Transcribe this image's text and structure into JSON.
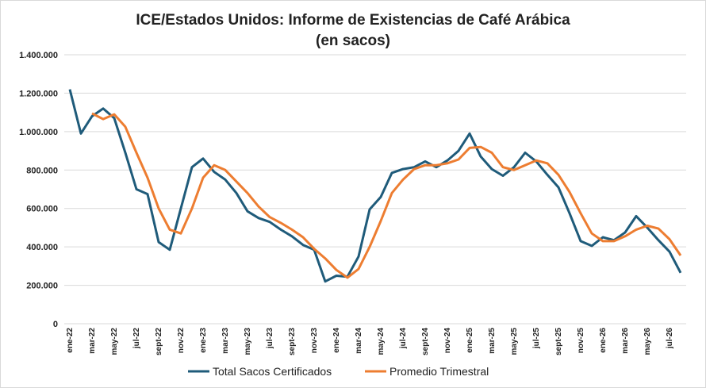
{
  "chart_data": {
    "type": "line",
    "title": "ICE/Estados Unidos: Informe de Existencias de Café Arábica",
    "subtitle": "(en sacos)",
    "xlabel": "",
    "ylabel": "",
    "ylim": [
      0,
      1400000
    ],
    "y_ticks": [
      0,
      200000,
      400000,
      600000,
      800000,
      1000000,
      1200000,
      1400000
    ],
    "y_tick_labels": [
      "0",
      "200.000",
      "400.000",
      "600.000",
      "800.000",
      "1.000.000",
      "1.200.000",
      "1.400.000"
    ],
    "grid": true,
    "legend_position": "bottom",
    "tick_labels": [
      "ene-22",
      "mar-22",
      "may-22",
      "jul-22",
      "sept-22",
      "nov-22",
      "ene-23",
      "mar-23",
      "may-23",
      "jul-23",
      "sept-23",
      "nov-23",
      "ene-24",
      "mar-24",
      "may-24",
      "jul-24",
      "sept-24",
      "nov-24",
      "ene-25",
      "mar-25",
      "may-25",
      "jul-25",
      "sept-25",
      "nov-25",
      "ene-26",
      "mar-26",
      "may-26",
      "jul-26"
    ],
    "series": [
      {
        "name": "Total Sacos Certificados",
        "color": "#1f5b7a",
        "values": [
          1220000,
          990000,
          1080000,
          1120000,
          1070000,
          890000,
          700000,
          675000,
          425000,
          385000,
          600000,
          815000,
          860000,
          790000,
          750000,
          680000,
          585000,
          550000,
          530000,
          490000,
          455000,
          410000,
          385000,
          220000,
          250000,
          245000,
          350000,
          595000,
          660000,
          785000,
          805000,
          815000,
          845000,
          815000,
          850000,
          900000,
          990000,
          870000,
          805000,
          770000,
          815000,
          890000,
          845000,
          775000,
          710000,
          575000,
          430000,
          405000,
          450000,
          435000,
          475000,
          560000,
          500000,
          435000,
          375000,
          265000
        ]
      },
      {
        "name": "Promedio Trimestral",
        "color": "#ed7d31",
        "values": [
          null,
          null,
          1095000,
          1065000,
          1090000,
          1025000,
          890000,
          760000,
          600000,
          490000,
          470000,
          600000,
          760000,
          825000,
          800000,
          740000,
          680000,
          610000,
          555000,
          525000,
          490000,
          450000,
          390000,
          340000,
          280000,
          240000,
          285000,
          400000,
          535000,
          680000,
          750000,
          805000,
          825000,
          825000,
          835000,
          855000,
          915000,
          920000,
          890000,
          815000,
          800000,
          825000,
          850000,
          835000,
          775000,
          685000,
          575000,
          470000,
          430000,
          430000,
          455000,
          490000,
          510000,
          495000,
          440000,
          355000
        ]
      }
    ]
  }
}
